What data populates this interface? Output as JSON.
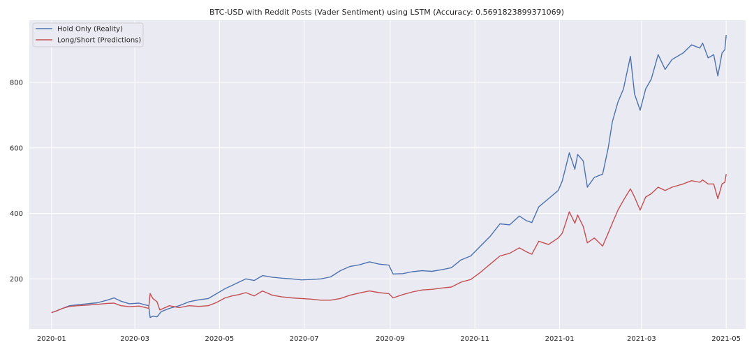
{
  "chart_data": {
    "type": "line",
    "title": "BTC-USD with Reddit Posts (Vader Sentiment) using LSTM (Accuracy: 0.5691823899371069)",
    "xlabel": "",
    "ylabel": "",
    "x_ticks": [
      "2020-01",
      "2020-03",
      "2020-05",
      "2020-07",
      "2020-09",
      "2020-11",
      "2021-01",
      "2021-03",
      "2021-05"
    ],
    "y_ticks": [
      200,
      400,
      600,
      800
    ],
    "xlim": [
      "2019-12-16",
      "2021-05-15"
    ],
    "ylim": [
      47,
      990
    ],
    "grid": true,
    "legend_position": "top-left",
    "colors": {
      "background": "#eaeaf2",
      "grid": "#ffffff",
      "hold": "#4c72b0",
      "longshort": "#c44e52"
    },
    "series": [
      {
        "name": "Hold Only (Reality)",
        "color": "#4c72b0",
        "points": [
          [
            "2020-01-01",
            97
          ],
          [
            "2020-01-05",
            103
          ],
          [
            "2020-01-09",
            110
          ],
          [
            "2020-01-14",
            118
          ],
          [
            "2020-01-20",
            121
          ],
          [
            "2020-01-27",
            124
          ],
          [
            "2020-02-03",
            127
          ],
          [
            "2020-02-10",
            135
          ],
          [
            "2020-02-15",
            142
          ],
          [
            "2020-02-20",
            132
          ],
          [
            "2020-02-26",
            124
          ],
          [
            "2020-03-04",
            126
          ],
          [
            "2020-03-08",
            121
          ],
          [
            "2020-03-11",
            118
          ],
          [
            "2020-03-12",
            82
          ],
          [
            "2020-03-14",
            86
          ],
          [
            "2020-03-17",
            84
          ],
          [
            "2020-03-20",
            100
          ],
          [
            "2020-03-26",
            110
          ],
          [
            "2020-04-02",
            118
          ],
          [
            "2020-04-09",
            130
          ],
          [
            "2020-04-16",
            136
          ],
          [
            "2020-04-23",
            140
          ],
          [
            "2020-04-29",
            155
          ],
          [
            "2020-05-05",
            170
          ],
          [
            "2020-05-10",
            180
          ],
          [
            "2020-05-15",
            190
          ],
          [
            "2020-05-20",
            200
          ],
          [
            "2020-05-26",
            195
          ],
          [
            "2020-06-01",
            210
          ],
          [
            "2020-06-08",
            205
          ],
          [
            "2020-06-15",
            202
          ],
          [
            "2020-06-22",
            200
          ],
          [
            "2020-06-29",
            197
          ],
          [
            "2020-07-06",
            198
          ],
          [
            "2020-07-13",
            200
          ],
          [
            "2020-07-20",
            206
          ],
          [
            "2020-07-27",
            225
          ],
          [
            "2020-08-03",
            238
          ],
          [
            "2020-08-10",
            243
          ],
          [
            "2020-08-17",
            252
          ],
          [
            "2020-08-24",
            245
          ],
          [
            "2020-08-31",
            242
          ],
          [
            "2020-09-03",
            215
          ],
          [
            "2020-09-10",
            216
          ],
          [
            "2020-09-17",
            222
          ],
          [
            "2020-09-24",
            225
          ],
          [
            "2020-10-01",
            223
          ],
          [
            "2020-10-08",
            228
          ],
          [
            "2020-10-15",
            234
          ],
          [
            "2020-10-22",
            258
          ],
          [
            "2020-10-29",
            270
          ],
          [
            "2020-11-05",
            300
          ],
          [
            "2020-11-12",
            330
          ],
          [
            "2020-11-19",
            368
          ],
          [
            "2020-11-26",
            365
          ],
          [
            "2020-12-03",
            392
          ],
          [
            "2020-12-08",
            378
          ],
          [
            "2020-12-12",
            372
          ],
          [
            "2020-12-17",
            420
          ],
          [
            "2020-12-24",
            445
          ],
          [
            "2020-12-31",
            470
          ],
          [
            "2021-01-03",
            500
          ],
          [
            "2021-01-08",
            585
          ],
          [
            "2021-01-12",
            535
          ],
          [
            "2021-01-14",
            580
          ],
          [
            "2021-01-18",
            560
          ],
          [
            "2021-01-21",
            480
          ],
          [
            "2021-01-26",
            510
          ],
          [
            "2021-02-01",
            520
          ],
          [
            "2021-02-05",
            600
          ],
          [
            "2021-02-08",
            680
          ],
          [
            "2021-02-12",
            740
          ],
          [
            "2021-02-16",
            780
          ],
          [
            "2021-02-21",
            880
          ],
          [
            "2021-02-24",
            765
          ],
          [
            "2021-02-28",
            715
          ],
          [
            "2021-03-04",
            780
          ],
          [
            "2021-03-08",
            810
          ],
          [
            "2021-03-13",
            885
          ],
          [
            "2021-03-18",
            840
          ],
          [
            "2021-03-23",
            870
          ],
          [
            "2021-03-31",
            890
          ],
          [
            "2021-04-06",
            915
          ],
          [
            "2021-04-12",
            905
          ],
          [
            "2021-04-14",
            920
          ],
          [
            "2021-04-18",
            875
          ],
          [
            "2021-04-22",
            885
          ],
          [
            "2021-04-25",
            820
          ],
          [
            "2021-04-28",
            890
          ],
          [
            "2021-04-30",
            900
          ],
          [
            "2021-05-01",
            945
          ]
        ]
      },
      {
        "name": "Long/Short (Predictions)",
        "color": "#c44e52",
        "points": [
          [
            "2020-01-01",
            97
          ],
          [
            "2020-01-05",
            103
          ],
          [
            "2020-01-09",
            110
          ],
          [
            "2020-01-14",
            116
          ],
          [
            "2020-01-20",
            118
          ],
          [
            "2020-01-27",
            120
          ],
          [
            "2020-02-03",
            122
          ],
          [
            "2020-02-10",
            125
          ],
          [
            "2020-02-15",
            126
          ],
          [
            "2020-02-20",
            118
          ],
          [
            "2020-02-26",
            115
          ],
          [
            "2020-03-04",
            117
          ],
          [
            "2020-03-08",
            113
          ],
          [
            "2020-03-11",
            110
          ],
          [
            "2020-03-12",
            155
          ],
          [
            "2020-03-14",
            140
          ],
          [
            "2020-03-17",
            130
          ],
          [
            "2020-03-19",
            105
          ],
          [
            "2020-03-26",
            118
          ],
          [
            "2020-04-02",
            112
          ],
          [
            "2020-04-09",
            118
          ],
          [
            "2020-04-16",
            116
          ],
          [
            "2020-04-23",
            118
          ],
          [
            "2020-04-29",
            128
          ],
          [
            "2020-05-05",
            142
          ],
          [
            "2020-05-10",
            148
          ],
          [
            "2020-05-15",
            152
          ],
          [
            "2020-05-20",
            158
          ],
          [
            "2020-05-26",
            148
          ],
          [
            "2020-06-01",
            163
          ],
          [
            "2020-06-08",
            150
          ],
          [
            "2020-06-15",
            145
          ],
          [
            "2020-06-22",
            142
          ],
          [
            "2020-06-29",
            140
          ],
          [
            "2020-07-06",
            138
          ],
          [
            "2020-07-13",
            135
          ],
          [
            "2020-07-20",
            135
          ],
          [
            "2020-07-27",
            140
          ],
          [
            "2020-08-03",
            150
          ],
          [
            "2020-08-10",
            157
          ],
          [
            "2020-08-17",
            163
          ],
          [
            "2020-08-24",
            158
          ],
          [
            "2020-08-31",
            155
          ],
          [
            "2020-09-03",
            142
          ],
          [
            "2020-09-10",
            152
          ],
          [
            "2020-09-17",
            160
          ],
          [
            "2020-09-24",
            166
          ],
          [
            "2020-10-01",
            168
          ],
          [
            "2020-10-08",
            172
          ],
          [
            "2020-10-15",
            175
          ],
          [
            "2020-10-22",
            190
          ],
          [
            "2020-10-29",
            198
          ],
          [
            "2020-11-05",
            220
          ],
          [
            "2020-11-12",
            245
          ],
          [
            "2020-11-19",
            270
          ],
          [
            "2020-11-26",
            278
          ],
          [
            "2020-12-03",
            295
          ],
          [
            "2020-12-08",
            283
          ],
          [
            "2020-12-12",
            275
          ],
          [
            "2020-12-17",
            315
          ],
          [
            "2020-12-24",
            305
          ],
          [
            "2020-12-31",
            325
          ],
          [
            "2021-01-03",
            340
          ],
          [
            "2021-01-08",
            405
          ],
          [
            "2021-01-12",
            370
          ],
          [
            "2021-01-14",
            395
          ],
          [
            "2021-01-18",
            360
          ],
          [
            "2021-01-21",
            310
          ],
          [
            "2021-01-26",
            325
          ],
          [
            "2021-02-01",
            300
          ],
          [
            "2021-02-05",
            340
          ],
          [
            "2021-02-08",
            370
          ],
          [
            "2021-02-12",
            410
          ],
          [
            "2021-02-16",
            440
          ],
          [
            "2021-02-21",
            475
          ],
          [
            "2021-02-24",
            450
          ],
          [
            "2021-02-28",
            410
          ],
          [
            "2021-03-04",
            450
          ],
          [
            "2021-03-08",
            460
          ],
          [
            "2021-03-13",
            480
          ],
          [
            "2021-03-18",
            470
          ],
          [
            "2021-03-23",
            480
          ],
          [
            "2021-03-31",
            490
          ],
          [
            "2021-04-06",
            500
          ],
          [
            "2021-04-12",
            495
          ],
          [
            "2021-04-14",
            502
          ],
          [
            "2021-04-18",
            490
          ],
          [
            "2021-04-22",
            490
          ],
          [
            "2021-04-25",
            445
          ],
          [
            "2021-04-28",
            490
          ],
          [
            "2021-04-30",
            495
          ],
          [
            "2021-05-01",
            520
          ]
        ]
      }
    ]
  }
}
